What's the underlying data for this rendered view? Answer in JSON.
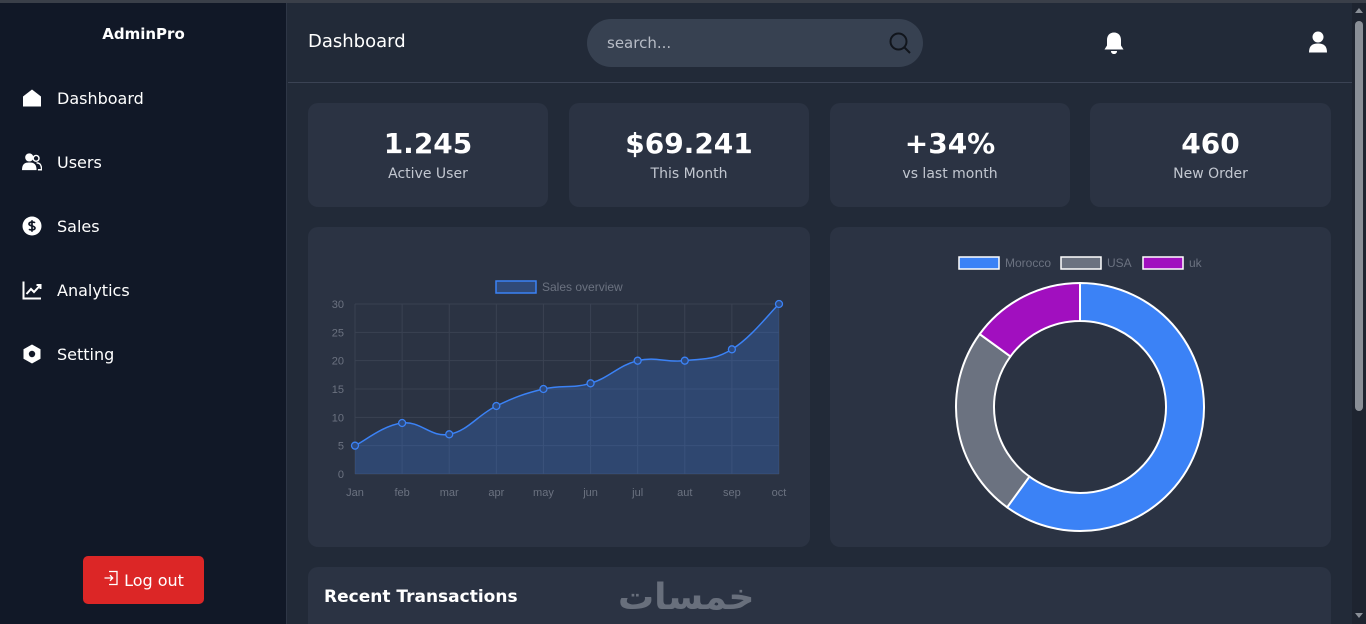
{
  "sidebar": {
    "brand": "AdminPro",
    "items": [
      {
        "label": "Dashboard",
        "icon": "home-icon"
      },
      {
        "label": "Users",
        "icon": "users-icon"
      },
      {
        "label": "Sales",
        "icon": "dollar-icon"
      },
      {
        "label": "Analytics",
        "icon": "chart-line-icon"
      },
      {
        "label": "Setting",
        "icon": "gear-icon"
      }
    ],
    "logout_label": "Log out"
  },
  "header": {
    "title": "Dashboard",
    "search_placeholder": "search..."
  },
  "stats": [
    {
      "value": "1.245",
      "label": "Active User"
    },
    {
      "value": "$69.241",
      "label": "This Month"
    },
    {
      "value": "+34%",
      "label": "vs last month"
    },
    {
      "value": "460",
      "label": "New Order"
    }
  ],
  "chart_data": [
    {
      "type": "area",
      "categories": [
        "Jan",
        "feb",
        "mar",
        "apr",
        "may",
        "jun",
        "jul",
        "aut",
        "sep",
        "oct"
      ],
      "series": [
        {
          "name": "Sales overview",
          "values": [
            5,
            9,
            7,
            12,
            15,
            16,
            20,
            20,
            22,
            30
          ],
          "color": "#3b82f6"
        }
      ],
      "ylim": [
        0,
        30
      ],
      "yticks": [
        0,
        5,
        10,
        15,
        20,
        25,
        30
      ],
      "grid": true,
      "legend": "top-center"
    },
    {
      "type": "pie",
      "donut": true,
      "labels": [
        "Morocco",
        "USA",
        "uk"
      ],
      "values": [
        60,
        25,
        15
      ],
      "colors": [
        "#3b82f6",
        "#6b7280",
        "#a10fbf"
      ],
      "legend": "top-center"
    }
  ],
  "transactions": {
    "title": "Recent Transactions",
    "watermark": "خمسات"
  }
}
